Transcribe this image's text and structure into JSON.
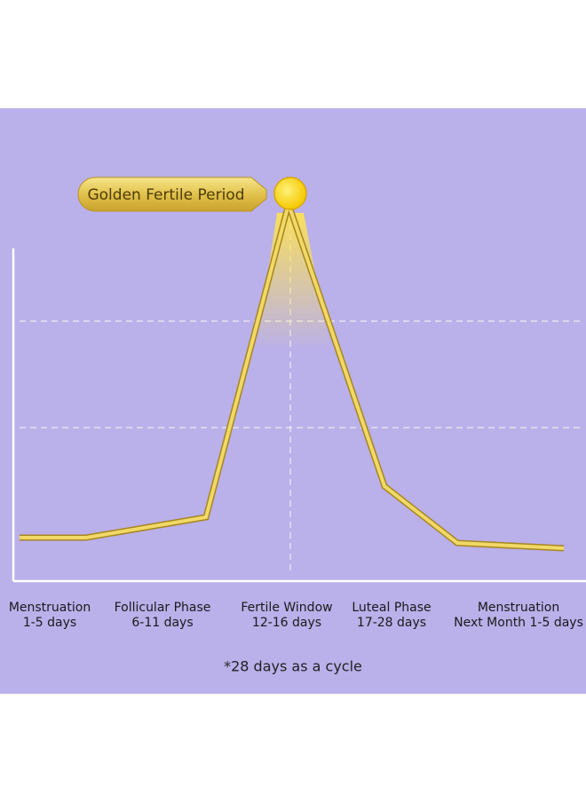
{
  "callout": "Golden Fertile Period",
  "phases": [
    {
      "name": "Menstruation",
      "days": "1-5 days"
    },
    {
      "name": "Follicular Phase",
      "days": "6-11 days"
    },
    {
      "name": "Fertile Window",
      "days": "12-16 days"
    },
    {
      "name": "Luteal Phase",
      "days": "17-28 days"
    },
    {
      "name": "Menstruation",
      "days": "Next Month 1-5 days"
    }
  ],
  "footnote": "*28 days as a cycle"
}
